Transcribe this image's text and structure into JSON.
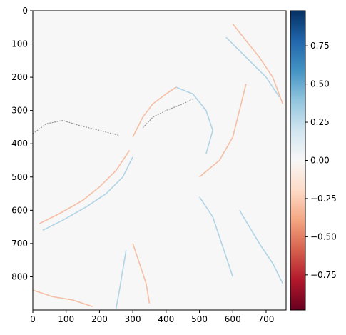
{
  "chart_data": {
    "type": "heatmap",
    "title": "",
    "xlabel": "",
    "ylabel": "",
    "xlim": [
      0,
      760
    ],
    "ylim": [
      900,
      0
    ],
    "x_ticks": [
      0,
      100,
      200,
      300,
      400,
      500,
      600,
      700
    ],
    "y_ticks": [
      0,
      100,
      200,
      300,
      400,
      500,
      600,
      700,
      800
    ],
    "colormap": "RdBu",
    "colorbar": {
      "vmin": -0.98,
      "vmax": 0.98,
      "ticks": [
        "0.75",
        "0.50",
        "0.25",
        "0.00",
        "−0.25",
        "−0.50",
        "−0.75"
      ],
      "tick_values": [
        0.75,
        0.5,
        0.25,
        0.0,
        -0.25,
        -0.5,
        -0.75
      ]
    },
    "background_value": 0.0,
    "features": [
      {
        "kind": "edge",
        "sign": "mixed",
        "points": [
          [
            330,
            352
          ],
          [
            360,
            320
          ],
          [
            400,
            300
          ],
          [
            450,
            280
          ],
          [
            480,
            265
          ]
        ]
      },
      {
        "kind": "edge",
        "sign": "negative",
        "points": [
          [
            20,
            640
          ],
          [
            80,
            610
          ],
          [
            150,
            570
          ],
          [
            200,
            530
          ],
          [
            250,
            480
          ],
          [
            290,
            420
          ]
        ]
      },
      {
        "kind": "edge",
        "sign": "positive",
        "points": [
          [
            30,
            660
          ],
          [
            90,
            630
          ],
          [
            160,
            590
          ],
          [
            220,
            550
          ],
          [
            270,
            500
          ],
          [
            300,
            440
          ]
        ]
      },
      {
        "kind": "edge",
        "sign": "negative",
        "points": [
          [
            300,
            380
          ],
          [
            330,
            320
          ],
          [
            360,
            280
          ],
          [
            400,
            250
          ],
          [
            430,
            230
          ]
        ]
      },
      {
        "kind": "edge",
        "sign": "positive",
        "points": [
          [
            430,
            230
          ],
          [
            480,
            250
          ],
          [
            520,
            300
          ],
          [
            540,
            360
          ],
          [
            520,
            430
          ]
        ]
      },
      {
        "kind": "edge",
        "sign": "negative",
        "points": [
          [
            500,
            500
          ],
          [
            560,
            450
          ],
          [
            600,
            380
          ],
          [
            620,
            300
          ],
          [
            640,
            220
          ]
        ]
      },
      {
        "kind": "edge",
        "sign": "positive",
        "points": [
          [
            580,
            80
          ],
          [
            620,
            120
          ],
          [
            660,
            160
          ],
          [
            700,
            200
          ],
          [
            740,
            260
          ]
        ]
      },
      {
        "kind": "edge",
        "sign": "negative",
        "points": [
          [
            600,
            40
          ],
          [
            640,
            90
          ],
          [
            680,
            140
          ],
          [
            720,
            200
          ],
          [
            750,
            280
          ]
        ]
      },
      {
        "kind": "edge",
        "sign": "mixed",
        "points": [
          [
            0,
            370
          ],
          [
            40,
            340
          ],
          [
            90,
            330
          ],
          [
            140,
            345
          ],
          [
            200,
            360
          ],
          [
            260,
            375
          ]
        ]
      },
      {
        "kind": "edge",
        "sign": "positive",
        "points": [
          [
            620,
            600
          ],
          [
            650,
            650
          ],
          [
            680,
            700
          ],
          [
            720,
            760
          ],
          [
            750,
            820
          ]
        ]
      },
      {
        "kind": "edge",
        "sign": "negative",
        "points": [
          [
            300,
            700
          ],
          [
            320,
            760
          ],
          [
            340,
            820
          ],
          [
            350,
            880
          ]
        ]
      },
      {
        "kind": "edge",
        "sign": "positive",
        "points": [
          [
            280,
            720
          ],
          [
            270,
            780
          ],
          [
            260,
            840
          ],
          [
            250,
            895
          ]
        ]
      },
      {
        "kind": "edge",
        "sign": "negative",
        "points": [
          [
            0,
            840
          ],
          [
            60,
            860
          ],
          [
            120,
            870
          ],
          [
            180,
            890
          ]
        ]
      },
      {
        "kind": "edge",
        "sign": "positive",
        "points": [
          [
            500,
            560
          ],
          [
            540,
            620
          ],
          [
            560,
            680
          ],
          [
            580,
            740
          ],
          [
            600,
            800
          ]
        ]
      }
    ]
  }
}
